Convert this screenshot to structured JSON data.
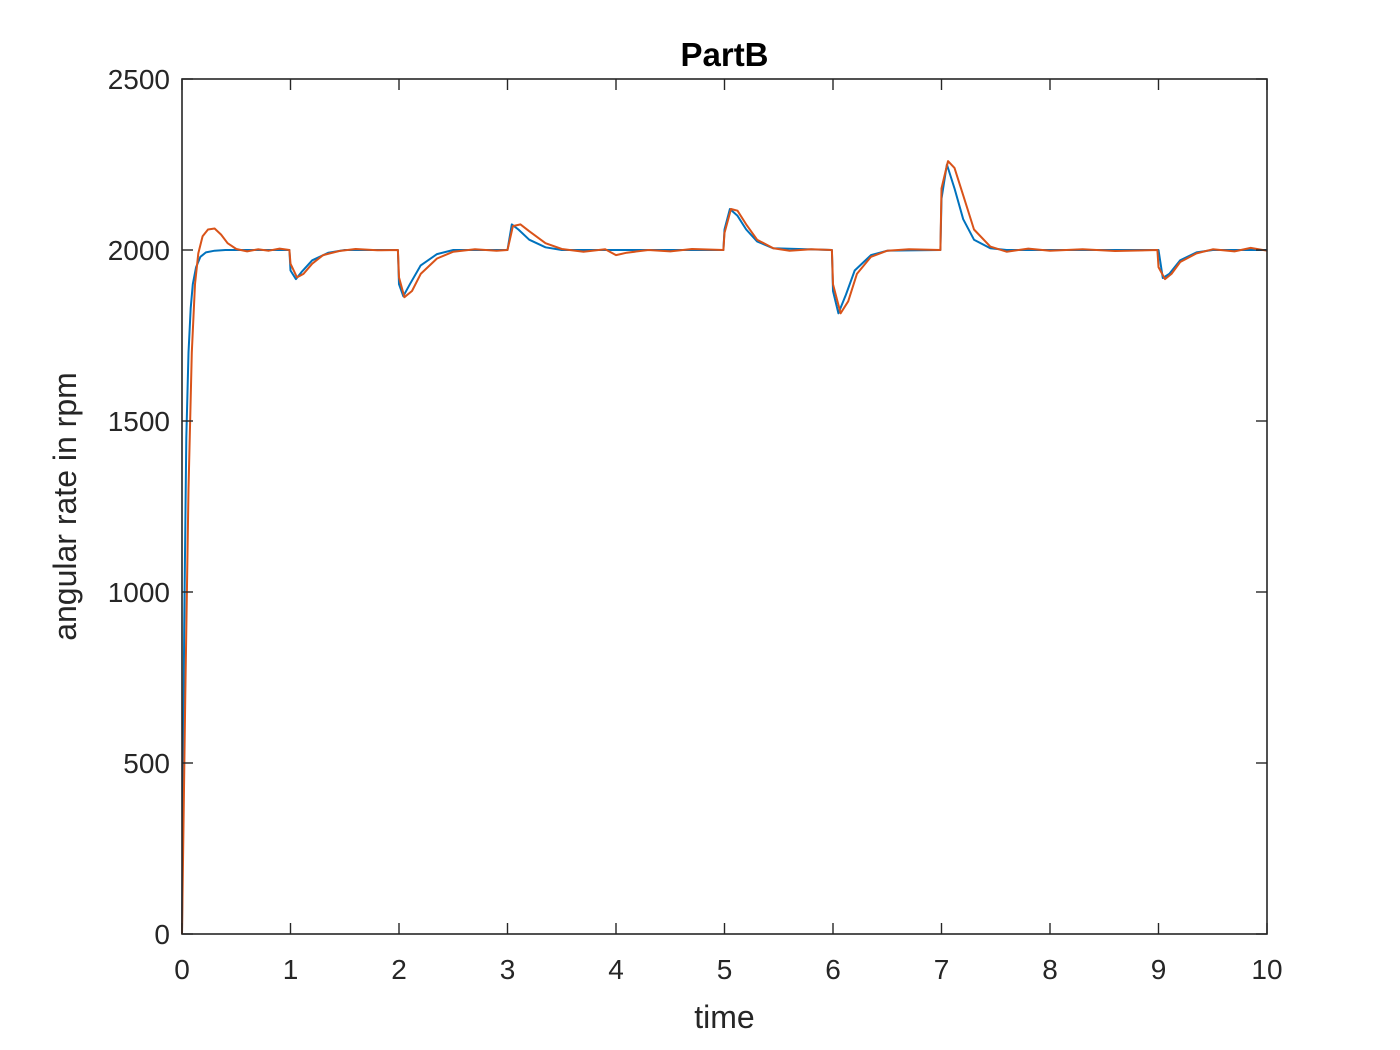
{
  "chart_data": {
    "type": "line",
    "title": "PartB",
    "xlabel": "time",
    "ylabel": "angular rate in rpm",
    "xlim": [
      0,
      10
    ],
    "ylim": [
      0,
      2500
    ],
    "xticks": [
      0,
      1,
      2,
      3,
      4,
      5,
      6,
      7,
      8,
      9,
      10
    ],
    "yticks": [
      0,
      500,
      1000,
      1500,
      2000,
      2500
    ],
    "grid": false,
    "legend": "none",
    "series": [
      {
        "color": "#0072BD",
        "x": [
          0,
          0.02,
          0.04,
          0.06,
          0.08,
          0.1,
          0.13,
          0.17,
          0.22,
          0.3,
          0.4,
          0.6,
          0.99,
          1.0,
          1.05,
          1.1,
          1.2,
          1.35,
          1.5,
          1.99,
          2.0,
          2.04,
          2.1,
          2.2,
          2.35,
          2.5,
          3.0,
          3.04,
          3.1,
          3.2,
          3.35,
          3.5,
          4.99,
          5.0,
          5.05,
          5.12,
          5.2,
          5.3,
          5.45,
          5.99,
          6.0,
          6.05,
          6.12,
          6.2,
          6.35,
          6.5,
          6.99,
          7.0,
          7.05,
          7.12,
          7.2,
          7.3,
          7.45,
          7.6,
          9.0,
          9.04,
          9.1,
          9.2,
          9.35,
          9.5,
          10.0
        ],
        "y": [
          0,
          900,
          1450,
          1700,
          1830,
          1900,
          1950,
          1980,
          1993,
          1998,
          2000,
          2000,
          2000,
          1940,
          1915,
          1935,
          1970,
          1992,
          2000,
          2000,
          1900,
          1865,
          1900,
          1955,
          1988,
          2000,
          2000,
          2075,
          2060,
          2030,
          2008,
          2000,
          2000,
          2060,
          2120,
          2100,
          2060,
          2025,
          2005,
          2000,
          1880,
          1815,
          1870,
          1940,
          1985,
          1998,
          2000,
          2150,
          2250,
          2180,
          2090,
          2030,
          2005,
          2000,
          2000,
          1918,
          1930,
          1970,
          1993,
          2000,
          2000
        ]
      },
      {
        "color": "#D95319",
        "x": [
          0,
          0.03,
          0.06,
          0.09,
          0.12,
          0.15,
          0.19,
          0.24,
          0.3,
          0.36,
          0.42,
          0.5,
          0.6,
          0.7,
          0.8,
          0.9,
          0.99,
          1.0,
          1.06,
          1.12,
          1.2,
          1.3,
          1.45,
          1.6,
          1.8,
          1.99,
          2.0,
          2.05,
          2.12,
          2.2,
          2.35,
          2.5,
          2.7,
          2.9,
          3.0,
          3.05,
          3.12,
          3.2,
          3.35,
          3.5,
          3.7,
          3.9,
          4.0,
          4.1,
          4.3,
          4.5,
          4.7,
          4.99,
          5.0,
          5.06,
          5.12,
          5.2,
          5.3,
          5.45,
          5.6,
          5.8,
          5.99,
          6.0,
          6.07,
          6.14,
          6.22,
          6.35,
          6.5,
          6.7,
          6.99,
          7.0,
          7.06,
          7.12,
          7.2,
          7.3,
          7.45,
          7.6,
          7.8,
          8.0,
          8.3,
          8.6,
          8.99,
          9.0,
          9.06,
          9.12,
          9.2,
          9.35,
          9.5,
          9.7,
          9.85,
          10.0
        ],
        "y": [
          0,
          700,
          1300,
          1700,
          1900,
          1990,
          2040,
          2060,
          2063,
          2045,
          2020,
          2003,
          1996,
          2002,
          1998,
          2004,
          2000,
          1960,
          1920,
          1930,
          1960,
          1985,
          1997,
          2003,
          1999,
          2000,
          1920,
          1862,
          1880,
          1930,
          1975,
          1995,
          2002,
          1998,
          2000,
          2070,
          2075,
          2055,
          2020,
          2003,
          1995,
          2002,
          1985,
          1992,
          2000,
          1996,
          2003,
          2000,
          2050,
          2120,
          2115,
          2075,
          2030,
          2005,
          1998,
          2002,
          2000,
          1900,
          1815,
          1850,
          1930,
          1980,
          1998,
          2002,
          2000,
          2180,
          2260,
          2240,
          2160,
          2060,
          2010,
          1995,
          2004,
          1998,
          2002,
          1997,
          2000,
          1950,
          1915,
          1930,
          1965,
          1990,
          2002,
          1996,
          2006,
          1998
        ]
      }
    ]
  }
}
